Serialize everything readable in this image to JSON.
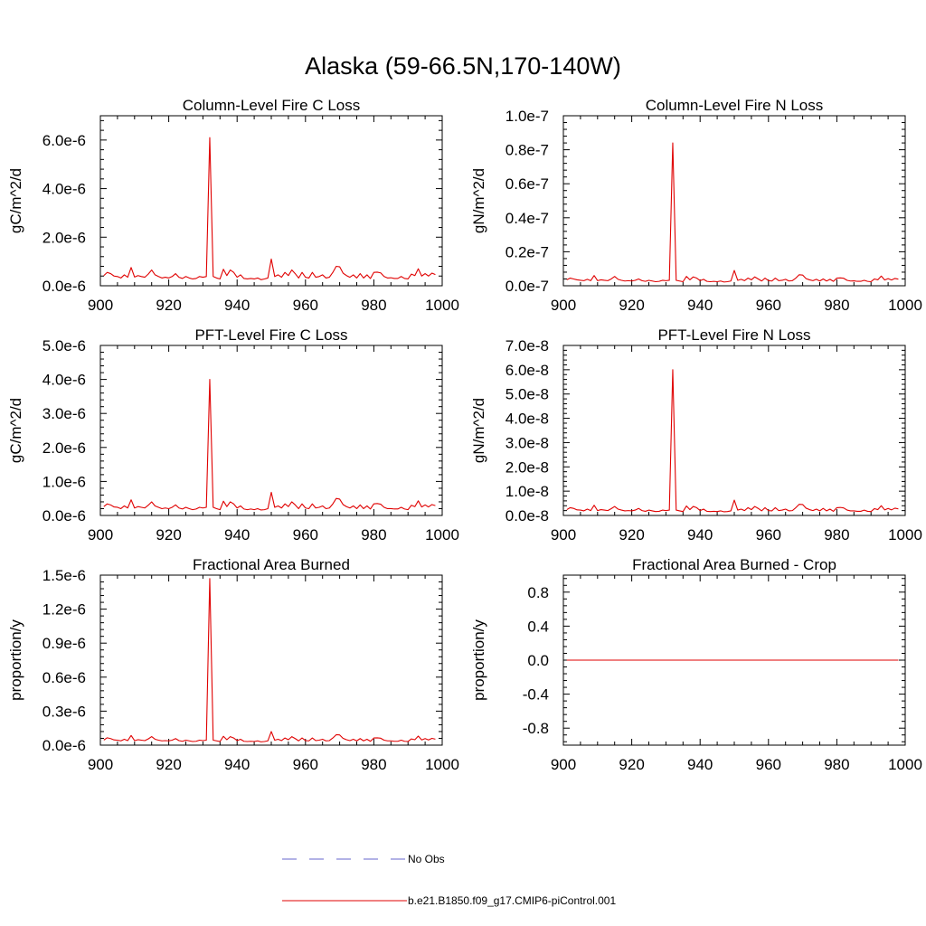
{
  "figure": {
    "title": "Alaska (59-66.5N,170-140W)"
  },
  "legend": {
    "entries": [
      {
        "label": "No Obs",
        "style": "dashed",
        "color": "#6666cc"
      },
      {
        "label": "b.e21.B1850.f09_g17.CMIP6-piControl.001",
        "style": "solid",
        "color": "#e00000"
      }
    ]
  },
  "chart_data": [
    {
      "type": "line",
      "title": "Column-Level Fire C Loss",
      "xlabel": "",
      "ylabel": "gC/m^2/d",
      "xlim": [
        900,
        1000
      ],
      "ylim": [
        0,
        7e-06
      ],
      "xticks": [
        900,
        920,
        940,
        960,
        980,
        1000
      ],
      "yticks": [
        0,
        2e-06,
        4e-06,
        6e-06
      ],
      "ytick_labels": [
        "0.0e-6",
        "2.0e-6",
        "4.0e-6",
        "6.0e-6"
      ],
      "grid": false,
      "series": [
        {
          "name": "b.e21.B1850.f09_g17.CMIP6-piControl.001",
          "color": "#e00000",
          "x_start": 901,
          "x_step": 1,
          "values": [
            4.2e-07,
            5.5e-07,
            5e-07,
            4e-07,
            3.8e-07,
            3.2e-07,
            4.5e-07,
            3.5e-07,
            7.5e-07,
            3.6e-07,
            4.2e-07,
            3.8e-07,
            3.5e-07,
            4.8e-07,
            6.5e-07,
            4.5e-07,
            3.8e-07,
            3.2e-07,
            3.5e-07,
            3.2e-07,
            3.8e-07,
            5e-07,
            3.5e-07,
            3e-07,
            3.8e-07,
            3.2e-07,
            2.8e-07,
            3e-07,
            3.8e-07,
            3.5e-07,
            3.8e-07,
            6.1e-06,
            3.8e-07,
            3.2e-07,
            2.8e-07,
            6.8e-07,
            4.2e-07,
            6.5e-07,
            5.5e-07,
            3.5e-07,
            4.5e-07,
            3e-07,
            2.8e-07,
            3e-07,
            2.8e-07,
            3.2e-07,
            2.5e-07,
            2.8e-07,
            3.2e-07,
            1.1e-06,
            3.8e-07,
            4.5e-07,
            3.5e-07,
            5.5e-07,
            4.2e-07,
            6.5e-07,
            5e-07,
            3.2e-07,
            5.5e-07,
            3.5e-07,
            3.2e-07,
            5.5e-07,
            3.5e-07,
            3.8e-07,
            4.5e-07,
            3.2e-07,
            3.5e-07,
            5.5e-07,
            8e-07,
            7.8e-07,
            5.2e-07,
            4.2e-07,
            3.5e-07,
            4.5e-07,
            3.2e-07,
            5e-07,
            3.2e-07,
            4.5e-07,
            3e-07,
            5.5e-07,
            5.6e-07,
            5.3e-07,
            3.8e-07,
            3.2e-07,
            3.3e-07,
            3e-07,
            3e-07,
            3.8e-07,
            3e-07,
            2.8e-07,
            4.8e-07,
            4.2e-07,
            7e-07,
            4e-07,
            5e-07,
            4e-07,
            5.2e-07,
            4.6e-07
          ]
        }
      ]
    },
    {
      "type": "line",
      "title": "Column-Level Fire N Loss",
      "xlabel": "",
      "ylabel": "gN/m^2/d",
      "xlim": [
        900,
        1000
      ],
      "ylim": [
        0,
        1e-07
      ],
      "xticks": [
        900,
        920,
        940,
        960,
        980,
        1000
      ],
      "yticks": [
        0,
        2e-08,
        4e-08,
        6e-08,
        8e-08,
        1e-07
      ],
      "ytick_labels": [
        "0.0e-7",
        "0.2e-7",
        "0.4e-7",
        "0.6e-7",
        "0.8e-7",
        "1.0e-7"
      ],
      "grid": false,
      "series": [
        {
          "name": "b.e21.B1850.f09_g17.CMIP6-piControl.001",
          "color": "#e00000",
          "x_start": 901,
          "x_step": 1,
          "values": [
            3.5e-09,
            4.5e-09,
            4e-09,
            3.5e-09,
            3.2e-09,
            3e-09,
            3.8e-09,
            3e-09,
            6e-09,
            3e-09,
            3.5e-09,
            3.2e-09,
            3e-09,
            4e-09,
            5.5e-09,
            3.8e-09,
            3.2e-09,
            2.8e-09,
            3e-09,
            2.8e-09,
            3.2e-09,
            4e-09,
            3e-09,
            2.6e-09,
            3.2e-09,
            2.8e-09,
            2.4e-09,
            2.6e-09,
            3.2e-09,
            3e-09,
            3.2e-09,
            8.4e-08,
            3.2e-09,
            2.8e-09,
            2.4e-09,
            5.5e-09,
            3.5e-09,
            5.2e-09,
            4.5e-09,
            3e-09,
            3.8e-09,
            2.6e-09,
            2.4e-09,
            2.6e-09,
            2.4e-09,
            2.8e-09,
            2.2e-09,
            2.4e-09,
            2.8e-09,
            9e-09,
            3.2e-09,
            3.8e-09,
            3e-09,
            4.5e-09,
            3.5e-09,
            5.2e-09,
            4e-09,
            2.8e-09,
            4.5e-09,
            3e-09,
            2.8e-09,
            4.5e-09,
            3e-09,
            3.2e-09,
            3.8e-09,
            2.8e-09,
            3e-09,
            4.5e-09,
            6.5e-09,
            6.3e-09,
            4.2e-09,
            3.5e-09,
            3e-09,
            3.8e-09,
            2.8e-09,
            4e-09,
            2.8e-09,
            3.8e-09,
            2.6e-09,
            4.5e-09,
            4.6e-09,
            4.4e-09,
            3.2e-09,
            2.8e-09,
            2.9e-09,
            2.6e-09,
            2.6e-09,
            3.2e-09,
            2.6e-09,
            2.4e-09,
            4e-09,
            3.5e-09,
            5.7e-09,
            3.4e-09,
            4.2e-09,
            3.4e-09,
            4.3e-09,
            3.9e-09
          ]
        }
      ]
    },
    {
      "type": "line",
      "title": "PFT-Level Fire C Loss",
      "xlabel": "",
      "ylabel": "gC/m^2/d",
      "xlim": [
        900,
        1000
      ],
      "ylim": [
        0,
        5e-06
      ],
      "xticks": [
        900,
        920,
        940,
        960,
        980,
        1000
      ],
      "yticks": [
        0,
        1e-06,
        2e-06,
        3e-06,
        4e-06,
        5e-06
      ],
      "ytick_labels": [
        "0.0e-6",
        "1.0e-6",
        "2.0e-6",
        "3.0e-6",
        "4.0e-6",
        "5.0e-6"
      ],
      "grid": false,
      "series": [
        {
          "name": "b.e21.B1850.f09_g17.CMIP6-piControl.001",
          "color": "#e00000",
          "x_start": 901,
          "x_step": 1,
          "values": [
            2.6e-07,
            3.4e-07,
            3.1e-07,
            2.5e-07,
            2.4e-07,
            2e-07,
            2.8e-07,
            2.2e-07,
            4.6e-07,
            2.2e-07,
            2.6e-07,
            2.4e-07,
            2.2e-07,
            3e-07,
            4e-07,
            2.8e-07,
            2.4e-07,
            2e-07,
            2.2e-07,
            2e-07,
            2.4e-07,
            3.1e-07,
            2.2e-07,
            1.9e-07,
            2.4e-07,
            2e-07,
            1.7e-07,
            1.9e-07,
            2.4e-07,
            2.2e-07,
            2.4e-07,
            4e-06,
            2.4e-07,
            2e-07,
            1.7e-07,
            4.2e-07,
            2.6e-07,
            4e-07,
            3.4e-07,
            2.2e-07,
            2.8e-07,
            1.9e-07,
            1.7e-07,
            1.9e-07,
            1.7e-07,
            2e-07,
            1.6e-07,
            1.7e-07,
            2e-07,
            6.8e-07,
            2.4e-07,
            2.8e-07,
            2.2e-07,
            3.4e-07,
            2.6e-07,
            4e-07,
            3.1e-07,
            2e-07,
            3.4e-07,
            2.2e-07,
            2e-07,
            3.4e-07,
            2.2e-07,
            2.4e-07,
            2.8e-07,
            2e-07,
            2.2e-07,
            3.4e-07,
            5e-07,
            4.8e-07,
            3.2e-07,
            2.6e-07,
            2.2e-07,
            2.8e-07,
            2e-07,
            3.1e-07,
            2e-07,
            2.8e-07,
            1.9e-07,
            3.4e-07,
            3.5e-07,
            3.3e-07,
            2.4e-07,
            2e-07,
            2e-07,
            1.9e-07,
            1.9e-07,
            2.4e-07,
            1.9e-07,
            1.7e-07,
            3e-07,
            2.6e-07,
            4.3e-07,
            2.5e-07,
            3.1e-07,
            2.5e-07,
            3.2e-07,
            2.9e-07
          ]
        }
      ]
    },
    {
      "type": "line",
      "title": "PFT-Level Fire N Loss",
      "xlabel": "",
      "ylabel": "gN/m^2/d",
      "xlim": [
        900,
        1000
      ],
      "ylim": [
        0,
        7e-08
      ],
      "xticks": [
        900,
        920,
        940,
        960,
        980,
        1000
      ],
      "yticks": [
        0,
        1e-08,
        2e-08,
        3e-08,
        4e-08,
        5e-08,
        6e-08,
        7e-08
      ],
      "ytick_labels": [
        "0.0e-8",
        "1.0e-8",
        "2.0e-8",
        "3.0e-8",
        "4.0e-8",
        "5.0e-8",
        "6.0e-8",
        "7.0e-8"
      ],
      "grid": false,
      "series": [
        {
          "name": "b.e21.B1850.f09_g17.CMIP6-piControl.001",
          "color": "#e00000",
          "x_start": 901,
          "x_step": 1,
          "values": [
            2.4e-09,
            3.2e-09,
            2.9e-09,
            2.3e-09,
            2.2e-09,
            1.9e-09,
            2.6e-09,
            2e-09,
            4.2e-09,
            2e-09,
            2.4e-09,
            2.2e-09,
            2e-09,
            2.8e-09,
            3.7e-09,
            2.6e-09,
            2.2e-09,
            1.9e-09,
            2e-09,
            1.9e-09,
            2.2e-09,
            2.9e-09,
            2e-09,
            1.7e-09,
            2.2e-09,
            1.9e-09,
            1.6e-09,
            1.7e-09,
            2.2e-09,
            2e-09,
            2.2e-09,
            6e-08,
            2.2e-09,
            1.9e-09,
            1.6e-09,
            3.9e-09,
            2.4e-09,
            3.7e-09,
            3.2e-09,
            2e-09,
            2.6e-09,
            1.7e-09,
            1.6e-09,
            1.7e-09,
            1.6e-09,
            1.9e-09,
            1.5e-09,
            1.6e-09,
            1.9e-09,
            6.3e-09,
            2.2e-09,
            2.6e-09,
            2e-09,
            3.2e-09,
            2.4e-09,
            3.7e-09,
            2.9e-09,
            1.9e-09,
            3.2e-09,
            2e-09,
            1.9e-09,
            3.2e-09,
            2e-09,
            2.2e-09,
            2.6e-09,
            1.9e-09,
            2e-09,
            3.2e-09,
            4.6e-09,
            4.5e-09,
            3e-09,
            2.4e-09,
            2e-09,
            2.6e-09,
            1.9e-09,
            2.9e-09,
            1.9e-09,
            2.6e-09,
            1.7e-09,
            3.2e-09,
            3.3e-09,
            3.1e-09,
            2.2e-09,
            1.9e-09,
            1.9e-09,
            1.7e-09,
            1.7e-09,
            2.2e-09,
            1.7e-09,
            1.6e-09,
            2.8e-09,
            2.4e-09,
            4e-09,
            2.3e-09,
            2.9e-09,
            2.3e-09,
            3e-09,
            2.7e-09
          ]
        }
      ]
    },
    {
      "type": "line",
      "title": "Fractional Area Burned",
      "xlabel": "",
      "ylabel": "proportion/y",
      "xlim": [
        900,
        1000
      ],
      "ylim": [
        0,
        1.5e-06
      ],
      "xticks": [
        900,
        920,
        940,
        960,
        980,
        1000
      ],
      "yticks": [
        0,
        3e-07,
        6e-07,
        9e-07,
        1.2e-06,
        1.5e-06
      ],
      "ytick_labels": [
        "0.0e-6",
        "0.3e-6",
        "0.6e-6",
        "0.9e-6",
        "1.2e-6",
        "1.5e-6"
      ],
      "grid": false,
      "series": [
        {
          "name": "b.e21.B1850.f09_g17.CMIP6-piControl.001",
          "color": "#e00000",
          "x_start": 901,
          "x_step": 1,
          "values": [
            4.5e-08,
            6.5e-08,
            5.8e-08,
            4.6e-08,
            4.4e-08,
            3.8e-08,
            5.2e-08,
            4e-08,
            8.5e-08,
            4e-08,
            4.8e-08,
            4.4e-08,
            4e-08,
            5.5e-08,
            7.5e-08,
            5.2e-08,
            4.4e-08,
            3.8e-08,
            4e-08,
            3.8e-08,
            4.4e-08,
            5.8e-08,
            4e-08,
            3.4e-08,
            4.4e-08,
            3.8e-08,
            3.2e-08,
            3.4e-08,
            4.4e-08,
            4e-08,
            4.4e-08,
            1.47e-06,
            4.4e-08,
            3.8e-08,
            3.2e-08,
            7.8e-08,
            4.8e-08,
            7.5e-08,
            6.3e-08,
            4e-08,
            5.2e-08,
            3.4e-08,
            3.2e-08,
            3.4e-08,
            3.2e-08,
            3.8e-08,
            2.9e-08,
            3.2e-08,
            3.8e-08,
            1.2e-07,
            4.4e-08,
            5.2e-08,
            4e-08,
            6.3e-08,
            4.8e-08,
            7.5e-08,
            5.8e-08,
            3.8e-08,
            6.3e-08,
            4e-08,
            3.8e-08,
            6.3e-08,
            4e-08,
            4.4e-08,
            5.2e-08,
            3.8e-08,
            4e-08,
            6.3e-08,
            9.2e-08,
            9e-08,
            6e-08,
            4.8e-08,
            4e-08,
            5.2e-08,
            3.8e-08,
            5.8e-08,
            3.8e-08,
            5.2e-08,
            3.4e-08,
            6.3e-08,
            6.4e-08,
            6.1e-08,
            4.4e-08,
            3.8e-08,
            3.8e-08,
            3.4e-08,
            3.4e-08,
            4.4e-08,
            3.4e-08,
            3.2e-08,
            5.5e-08,
            4.8e-08,
            8e-08,
            4.6e-08,
            5.8e-08,
            4.6e-08,
            6e-08,
            5.3e-08
          ]
        }
      ]
    },
    {
      "type": "line",
      "title": "Fractional Area Burned - Crop",
      "xlabel": "",
      "ylabel": "proportion/y",
      "xlim": [
        900,
        1000
      ],
      "ylim": [
        -1,
        1
      ],
      "xticks": [
        900,
        920,
        940,
        960,
        980,
        1000
      ],
      "yticks": [
        -0.8,
        -0.4,
        0,
        0.4,
        0.8
      ],
      "ytick_labels": [
        "-0.8",
        "-0.4",
        "0.0",
        "0.4",
        "0.8"
      ],
      "grid": false,
      "series": [
        {
          "name": "b.e21.B1850.f09_g17.CMIP6-piControl.001",
          "color": "#e00000",
          "x_start": 901,
          "x_step": 1,
          "values": [
            0,
            0,
            0,
            0,
            0,
            0,
            0,
            0,
            0,
            0,
            0,
            0,
            0,
            0,
            0,
            0,
            0,
            0,
            0,
            0,
            0,
            0,
            0,
            0,
            0,
            0,
            0,
            0,
            0,
            0,
            0,
            0,
            0,
            0,
            0,
            0,
            0,
            0,
            0,
            0,
            0,
            0,
            0,
            0,
            0,
            0,
            0,
            0,
            0,
            0,
            0,
            0,
            0,
            0,
            0,
            0,
            0,
            0,
            0,
            0,
            0,
            0,
            0,
            0,
            0,
            0,
            0,
            0,
            0,
            0,
            0,
            0,
            0,
            0,
            0,
            0,
            0,
            0,
            0,
            0,
            0,
            0,
            0,
            0,
            0,
            0,
            0,
            0,
            0,
            0,
            0,
            0,
            0,
            0,
            0,
            0,
            0,
            0
          ]
        }
      ]
    }
  ]
}
